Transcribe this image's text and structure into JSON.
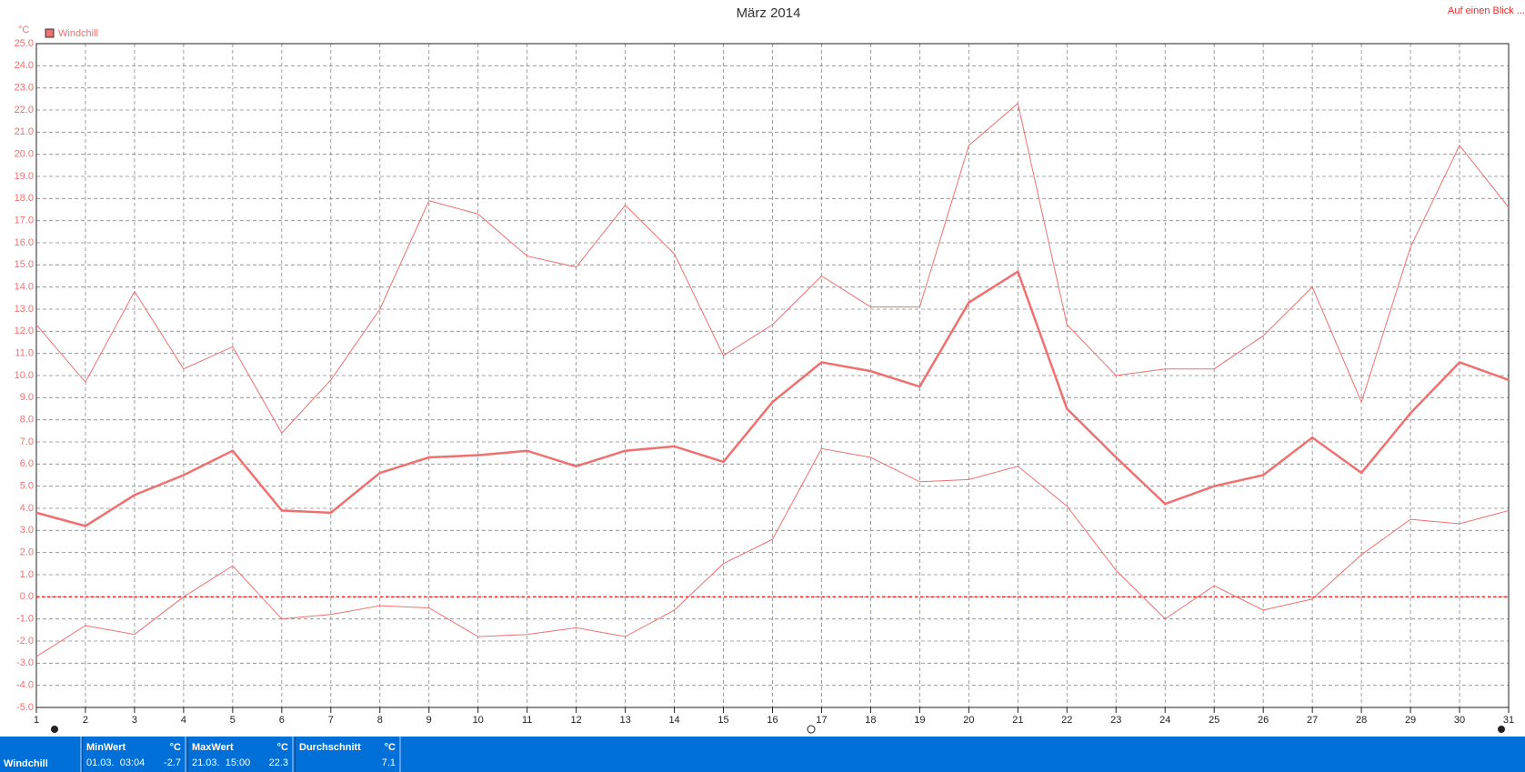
{
  "chart_data": {
    "type": "line",
    "title": "März 2014",
    "y_unit": "°C",
    "link": "Auf einen Blick ...",
    "x": [
      1,
      2,
      3,
      4,
      5,
      6,
      7,
      8,
      9,
      10,
      11,
      12,
      13,
      14,
      15,
      16,
      17,
      18,
      19,
      20,
      21,
      22,
      23,
      24,
      25,
      26,
      27,
      28,
      29,
      30,
      31
    ],
    "xlim": [
      1,
      31
    ],
    "xticks": [
      1,
      2,
      3,
      4,
      5,
      6,
      7,
      8,
      9,
      10,
      11,
      12,
      13,
      14,
      15,
      16,
      17,
      18,
      19,
      20,
      21,
      22,
      23,
      24,
      25,
      26,
      27,
      28,
      29,
      30,
      31
    ],
    "ylim": [
      -5,
      25
    ],
    "yticks": [
      {
        "value": -5,
        "label": "-5.0"
      },
      {
        "value": -4,
        "label": "-4.0"
      },
      {
        "value": -3,
        "label": "-3.0"
      },
      {
        "value": -2,
        "label": "-2.0"
      },
      {
        "value": -1,
        "label": "-1.0"
      },
      {
        "value": 0,
        "label": "0.0"
      },
      {
        "value": 1,
        "label": "1.0"
      },
      {
        "value": 2,
        "label": "2.0"
      },
      {
        "value": 3,
        "label": "3.0"
      },
      {
        "value": 4,
        "label": "4.0"
      },
      {
        "value": 5,
        "label": "5.0"
      },
      {
        "value": 6,
        "label": "6.0"
      },
      {
        "value": 7,
        "label": "7.0"
      },
      {
        "value": 8,
        "label": "8.0"
      },
      {
        "value": 9,
        "label": "9.0"
      },
      {
        "value": 10,
        "label": "10.0"
      },
      {
        "value": 11,
        "label": "11.0"
      },
      {
        "value": 12,
        "label": "12.0"
      },
      {
        "value": 13,
        "label": "13.0"
      },
      {
        "value": 14,
        "label": "14.0"
      },
      {
        "value": 15,
        "label": "15.0"
      },
      {
        "value": 16,
        "label": "16.0"
      },
      {
        "value": 17,
        "label": "17.0"
      },
      {
        "value": 18,
        "label": "18.0"
      },
      {
        "value": 19,
        "label": "19.0"
      },
      {
        "value": 20,
        "label": "20.0"
      },
      {
        "value": 21,
        "label": "21.0"
      },
      {
        "value": 22,
        "label": "22.0"
      },
      {
        "value": 23,
        "label": "23.0"
      },
      {
        "value": 24,
        "label": "24.0"
      },
      {
        "value": 25,
        "label": "25.0"
      }
    ],
    "grid": true,
    "zero_line": 0,
    "series": [
      {
        "color": "#f07070",
        "values": [
          12.3,
          9.7,
          13.8,
          10.3,
          11.3,
          7.4,
          9.8,
          13.0,
          17.9,
          17.3,
          15.4,
          14.9,
          17.7,
          15.5,
          10.9,
          12.3,
          14.5,
          13.1,
          13.1,
          20.4,
          22.3,
          12.3,
          10.0,
          10.3,
          10.3,
          11.8,
          14.0,
          8.8,
          15.8,
          20.4,
          17.6
        ]
      },
      {
        "name": "Windchill",
        "color": "#f07070",
        "values": [
          3.8,
          3.2,
          4.6,
          5.5,
          6.6,
          3.9,
          3.8,
          5.6,
          6.3,
          6.4,
          6.6,
          5.9,
          6.6,
          6.8,
          6.1,
          8.8,
          10.6,
          10.2,
          9.5,
          13.3,
          14.7,
          8.5,
          6.3,
          4.2,
          5.0,
          5.5,
          7.2,
          5.6,
          8.3,
          10.6,
          9.8
        ]
      },
      {
        "color": "#f07070",
        "values": [
          -2.7,
          -1.3,
          -1.7,
          0.0,
          1.4,
          -1.0,
          -0.8,
          -0.4,
          -0.5,
          -1.8,
          -1.7,
          -1.4,
          -1.8,
          -0.6,
          1.5,
          2.6,
          6.7,
          6.3,
          5.2,
          5.3,
          5.9,
          4.1,
          1.2,
          -1.0,
          0.5,
          -0.6,
          -0.1,
          1.9,
          3.5,
          3.3,
          3.9
        ]
      }
    ]
  },
  "summary": {
    "label": "Windchill",
    "min": {
      "title": "MinWert",
      "unit": "°C",
      "date": "01.03.  03:04",
      "value": "-2.7"
    },
    "max": {
      "title": "MaxWert",
      "unit": "°C",
      "date": "21.03.  15:00",
      "value": "22.3"
    },
    "avg": {
      "title": "Durchschnitt",
      "unit": "°C",
      "value": "7.1"
    }
  }
}
